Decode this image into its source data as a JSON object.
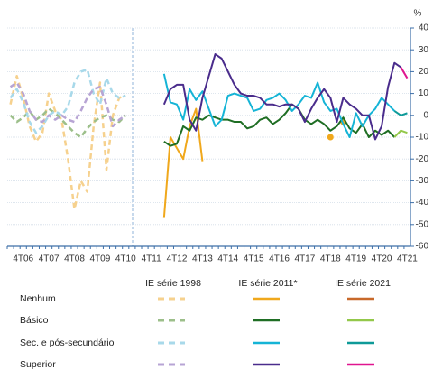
{
  "chart_data": {
    "type": "line",
    "y_label": "%",
    "categories": [
      null,
      null,
      "4T06",
      null,
      null,
      null,
      "4T07",
      null,
      null,
      null,
      "4T08",
      null,
      null,
      null,
      "4T09",
      null,
      null,
      null,
      "4T10",
      null,
      null,
      null,
      "4T11",
      null,
      null,
      null,
      "4T12",
      null,
      null,
      null,
      "4T13",
      null,
      null,
      null,
      "4T14",
      null,
      null,
      null,
      "4T15",
      null,
      null,
      null,
      "4T16",
      null,
      null,
      null,
      "4T17",
      null,
      null,
      null,
      "4T18",
      null,
      null,
      null,
      "4T19",
      null,
      null,
      null,
      "4T20",
      null,
      null,
      null,
      "4T21"
    ],
    "ylim": [
      -60,
      40
    ],
    "yticks": [
      40,
      30,
      20,
      10,
      0,
      -10,
      -20,
      -30,
      -40,
      -50,
      -60
    ],
    "grid": true,
    "groups": [
      {
        "name": "IE série 1998",
        "dash": true,
        "series": [
          {
            "name": "Nenhum",
            "color": "#f6d18e",
            "values": [
              5,
              18,
              8,
              -5,
              -12,
              -8,
              10,
              2,
              -2,
              -20,
              -43,
              -30,
              -35,
              -5,
              15,
              -25,
              0,
              8,
              9,
              null,
              null,
              null,
              null,
              null,
              null,
              null,
              null,
              null,
              null,
              null,
              null,
              null,
              null,
              null,
              null,
              null,
              null,
              null,
              null,
              null,
              null,
              null,
              null,
              null,
              null,
              null,
              null,
              null,
              null,
              null,
              null,
              null,
              null,
              null,
              null,
              null,
              null,
              null,
              null,
              null,
              null,
              null,
              null
            ]
          },
          {
            "name": "Básico",
            "color": "#9cbf8a",
            "values": [
              0,
              -3,
              -1,
              2,
              -2,
              0,
              3,
              1,
              -2,
              -5,
              -8,
              -10,
              -6,
              -3,
              -1,
              0,
              -2,
              -3,
              0,
              null,
              null,
              null,
              null,
              null,
              null,
              null,
              null,
              null,
              null,
              null,
              null,
              null,
              null,
              null,
              null,
              null,
              null,
              null,
              null,
              null,
              null,
              null,
              null,
              null,
              null,
              null,
              null,
              null,
              null,
              null,
              null,
              null,
              null,
              null,
              null,
              null,
              null,
              null,
              null,
              null,
              null,
              null,
              null
            ]
          },
          {
            "name": "Sec. e pós-secundário",
            "color": "#a8d9ea",
            "values": [
              8,
              12,
              6,
              -3,
              -8,
              -5,
              0,
              2,
              0,
              4,
              15,
              20,
              21,
              10,
              5,
              17,
              10,
              8,
              9,
              null,
              null,
              null,
              null,
              null,
              null,
              null,
              null,
              null,
              null,
              null,
              null,
              null,
              null,
              null,
              null,
              null,
              null,
              null,
              null,
              null,
              null,
              null,
              null,
              null,
              null,
              null,
              null,
              null,
              null,
              null,
              null,
              null,
              null,
              null,
              null,
              null,
              null,
              null,
              null,
              null,
              null,
              null,
              null
            ]
          },
          {
            "name": "Superior",
            "color": "#b7a4d4",
            "values": [
              13,
              15,
              10,
              2,
              -2,
              -3,
              0,
              -2,
              0,
              -2,
              -3,
              2,
              8,
              12,
              13,
              5,
              -5,
              -2,
              0,
              null,
              null,
              null,
              null,
              null,
              null,
              null,
              null,
              null,
              null,
              null,
              null,
              null,
              null,
              null,
              null,
              null,
              null,
              null,
              null,
              null,
              null,
              null,
              null,
              null,
              null,
              null,
              null,
              null,
              null,
              null,
              null,
              null,
              null,
              null,
              null,
              null,
              null,
              null,
              null,
              null,
              null,
              null,
              null
            ]
          }
        ]
      },
      {
        "name": "IE série 2011*",
        "dash": false,
        "series": [
          {
            "name": "Nenhum",
            "color": "#f0a81c",
            "values": [
              null,
              null,
              null,
              null,
              null,
              null,
              null,
              null,
              null,
              null,
              null,
              null,
              null,
              null,
              null,
              null,
              null,
              null,
              null,
              null,
              null,
              null,
              null,
              null,
              -47,
              -10,
              -15,
              -20,
              -5,
              3,
              -21,
              null,
              null,
              null,
              null,
              null,
              null,
              null,
              null,
              null,
              null,
              null,
              null,
              null,
              null,
              null,
              null,
              null,
              null,
              null,
              -10,
              null,
              -3,
              null,
              null,
              null,
              null,
              null,
              null,
              null,
              null,
              null,
              null
            ]
          },
          {
            "name": "Básico",
            "color": "#1f6e24",
            "values": [
              null,
              null,
              null,
              null,
              null,
              null,
              null,
              null,
              null,
              null,
              null,
              null,
              null,
              null,
              null,
              null,
              null,
              null,
              null,
              null,
              null,
              null,
              null,
              null,
              -12,
              -14,
              -13,
              -5,
              -7,
              -1,
              -2,
              0,
              -1,
              -2,
              -2,
              -3,
              -3,
              -6,
              -5,
              -2,
              -1,
              -4,
              -2,
              1,
              5,
              3,
              -2,
              -4,
              -2,
              -4,
              -7,
              -5,
              -1,
              -6,
              -8,
              -4,
              -10,
              -7,
              -9,
              -7,
              -10,
              null,
              null
            ]
          },
          {
            "name": "Sec. e pós-secundário",
            "color": "#15b4d6",
            "values": [
              null,
              null,
              null,
              null,
              null,
              null,
              null,
              null,
              null,
              null,
              null,
              null,
              null,
              null,
              null,
              null,
              null,
              null,
              null,
              null,
              null,
              null,
              null,
              null,
              19,
              6,
              5,
              -2,
              12,
              7,
              11,
              3,
              -5,
              -2,
              9,
              10,
              9,
              8,
              2,
              3,
              7,
              8,
              10,
              7,
              2,
              5,
              9,
              8,
              15,
              6,
              2,
              3,
              -4,
              -10,
              1,
              -5,
              0,
              3,
              8,
              5,
              2,
              null,
              null
            ]
          },
          {
            "name": "Superior",
            "color": "#4a2c8c",
            "values": [
              null,
              null,
              null,
              null,
              null,
              null,
              null,
              null,
              null,
              null,
              null,
              null,
              null,
              null,
              null,
              null,
              null,
              null,
              null,
              null,
              null,
              null,
              null,
              null,
              5,
              12,
              14,
              14,
              -2,
              -7,
              8,
              18,
              28,
              26,
              20,
              14,
              10,
              9,
              9,
              8,
              5,
              5,
              4,
              5,
              5,
              3,
              -3,
              3,
              8,
              12,
              8,
              -3,
              8,
              5,
              3,
              0,
              0,
              -11,
              -5,
              13,
              24,
              22,
              null
            ]
          }
        ]
      },
      {
        "name": "IE série 2021",
        "dash": false,
        "series": [
          {
            "name": "Nenhum",
            "color": "#c8692a",
            "values": [
              null,
              null,
              null,
              null,
              null,
              null,
              null,
              null,
              null,
              null,
              null,
              null,
              null,
              null,
              null,
              null,
              null,
              null,
              null,
              null,
              null,
              null,
              null,
              null,
              null,
              null,
              null,
              null,
              null,
              null,
              null,
              null,
              null,
              null,
              null,
              null,
              null,
              null,
              null,
              null,
              null,
              null,
              null,
              null,
              null,
              null,
              null,
              null,
              null,
              null,
              null,
              null,
              null,
              null,
              null,
              null,
              null,
              null,
              null,
              null,
              null,
              null,
              null
            ]
          },
          {
            "name": "Básico",
            "color": "#93c84a",
            "values": [
              null,
              null,
              null,
              null,
              null,
              null,
              null,
              null,
              null,
              null,
              null,
              null,
              null,
              null,
              null,
              null,
              null,
              null,
              null,
              null,
              null,
              null,
              null,
              null,
              null,
              null,
              null,
              null,
              null,
              null,
              null,
              null,
              null,
              null,
              null,
              null,
              null,
              null,
              null,
              null,
              null,
              null,
              null,
              null,
              null,
              null,
              null,
              null,
              null,
              null,
              null,
              null,
              null,
              null,
              null,
              null,
              null,
              null,
              null,
              null,
              -10,
              -7,
              -8
            ]
          },
          {
            "name": "Sec. e pós-secundário",
            "color": "#0e9a98",
            "values": [
              null,
              null,
              null,
              null,
              null,
              null,
              null,
              null,
              null,
              null,
              null,
              null,
              null,
              null,
              null,
              null,
              null,
              null,
              null,
              null,
              null,
              null,
              null,
              null,
              null,
              null,
              null,
              null,
              null,
              null,
              null,
              null,
              null,
              null,
              null,
              null,
              null,
              null,
              null,
              null,
              null,
              null,
              null,
              null,
              null,
              null,
              null,
              null,
              null,
              null,
              null,
              null,
              null,
              null,
              null,
              null,
              null,
              null,
              null,
              null,
              2,
              0,
              1
            ]
          },
          {
            "name": "Superior",
            "color": "#e0158f",
            "values": [
              null,
              null,
              null,
              null,
              null,
              null,
              null,
              null,
              null,
              null,
              null,
              null,
              null,
              null,
              null,
              null,
              null,
              null,
              null,
              null,
              null,
              null,
              null,
              null,
              null,
              null,
              null,
              null,
              null,
              null,
              null,
              null,
              null,
              null,
              null,
              null,
              null,
              null,
              null,
              null,
              null,
              null,
              null,
              null,
              null,
              null,
              null,
              null,
              null,
              null,
              null,
              null,
              null,
              null,
              null,
              null,
              null,
              null,
              null,
              null,
              null,
              22,
              17
            ]
          }
        ]
      }
    ]
  }
}
